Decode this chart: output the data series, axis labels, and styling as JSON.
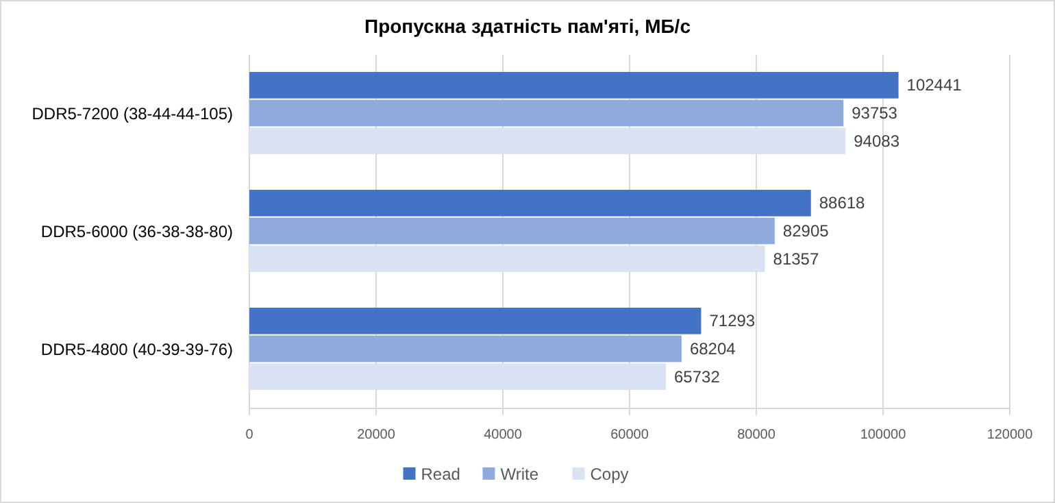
{
  "chart_data": {
    "type": "bar",
    "orientation": "horizontal",
    "title": "Пропускна здатність пам'яті, МБ/с",
    "categories": [
      "DDR5-7200 (38-44-44-105)",
      "DDR5-6000 (36-38-38-80)",
      "DDR5-4800 (40-39-39-76)"
    ],
    "series": [
      {
        "name": "Read",
        "color": "#4472c4",
        "values": [
          102441,
          88618,
          71293
        ]
      },
      {
        "name": "Write",
        "color": "#8faadc",
        "values": [
          93753,
          82905,
          68204
        ]
      },
      {
        "name": "Copy",
        "color": "#dae3f3",
        "values": [
          94083,
          81357,
          65732
        ]
      }
    ],
    "xlim": [
      0,
      120000
    ],
    "xticks": [
      0,
      20000,
      40000,
      60000,
      80000,
      100000,
      120000
    ],
    "grid": "x",
    "legend": "bottom",
    "data_labels": true
  }
}
